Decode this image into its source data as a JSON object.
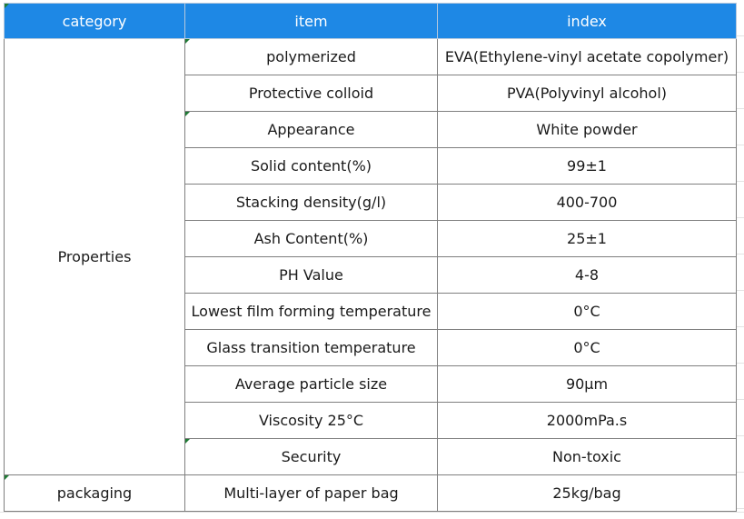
{
  "table": {
    "headers": [
      "category",
      "item",
      "index"
    ],
    "groups": [
      {
        "category": "Properties",
        "rows": [
          {
            "item": "polymerized",
            "index": "EVA(Ethylene-vinyl acetate copolymer)"
          },
          {
            "item": "Protective colloid",
            "index": "PVA(Polyvinyl alcohol)"
          },
          {
            "item": "Appearance",
            "index": "White powder"
          },
          {
            "item": "Solid content(%)",
            "index": "99±1"
          },
          {
            "item": "Stacking density(g/l)",
            "index": "400-700"
          },
          {
            "item": "Ash Content(%)",
            "index": "25±1"
          },
          {
            "item": "PH Value",
            "index": "4-8"
          },
          {
            "item": "Lowest film forming temperature",
            "index": "0°C"
          },
          {
            "item": "Glass transition temperature",
            "index": "0°C"
          },
          {
            "item": "Average particle size",
            "index": "90µm"
          },
          {
            "item": "Viscosity 25°C",
            "index": "2000mPa.s"
          },
          {
            "item": "Security",
            "index": "Non-toxic"
          }
        ]
      },
      {
        "category": "packaging",
        "rows": [
          {
            "item": "Multi-layer of paper bag",
            "index": "25kg/bag"
          }
        ]
      }
    ]
  },
  "colors": {
    "header_bg": "#1e88e5",
    "header_text": "#ffffff",
    "border": "#7f7f7f",
    "corner_mark": "#1e7b34"
  }
}
